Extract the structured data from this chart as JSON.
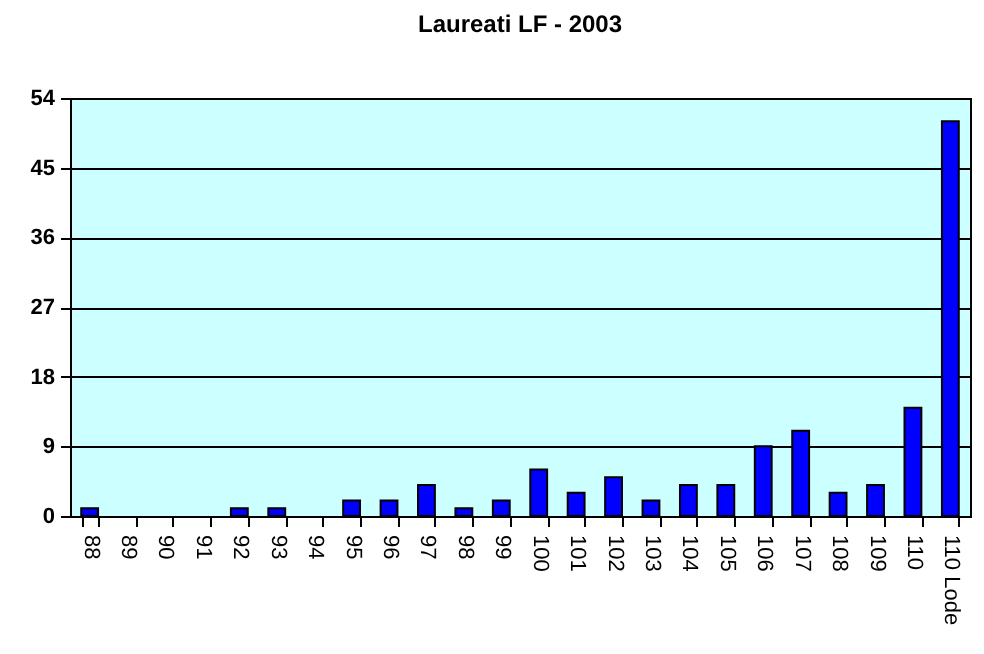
{
  "chart_data": {
    "type": "bar",
    "title": "Laureati LF - 2003",
    "categories": [
      "88",
      "89",
      "90",
      "91",
      "92",
      "93",
      "94",
      "95",
      "96",
      "97",
      "98",
      "99",
      "100",
      "101",
      "102",
      "103",
      "104",
      "105",
      "106",
      "107",
      "108",
      "109",
      "110",
      "110 Lode"
    ],
    "values": [
      1,
      0,
      0,
      0,
      1,
      1,
      0,
      2,
      2,
      4,
      1,
      2,
      6,
      3,
      5,
      2,
      4,
      4,
      9,
      11,
      3,
      4,
      14,
      51
    ],
    "color": "#0000ff",
    "ylim": [
      0,
      54
    ],
    "yticks": [
      0,
      9,
      18,
      27,
      36,
      45,
      54
    ],
    "grid": "y"
  }
}
